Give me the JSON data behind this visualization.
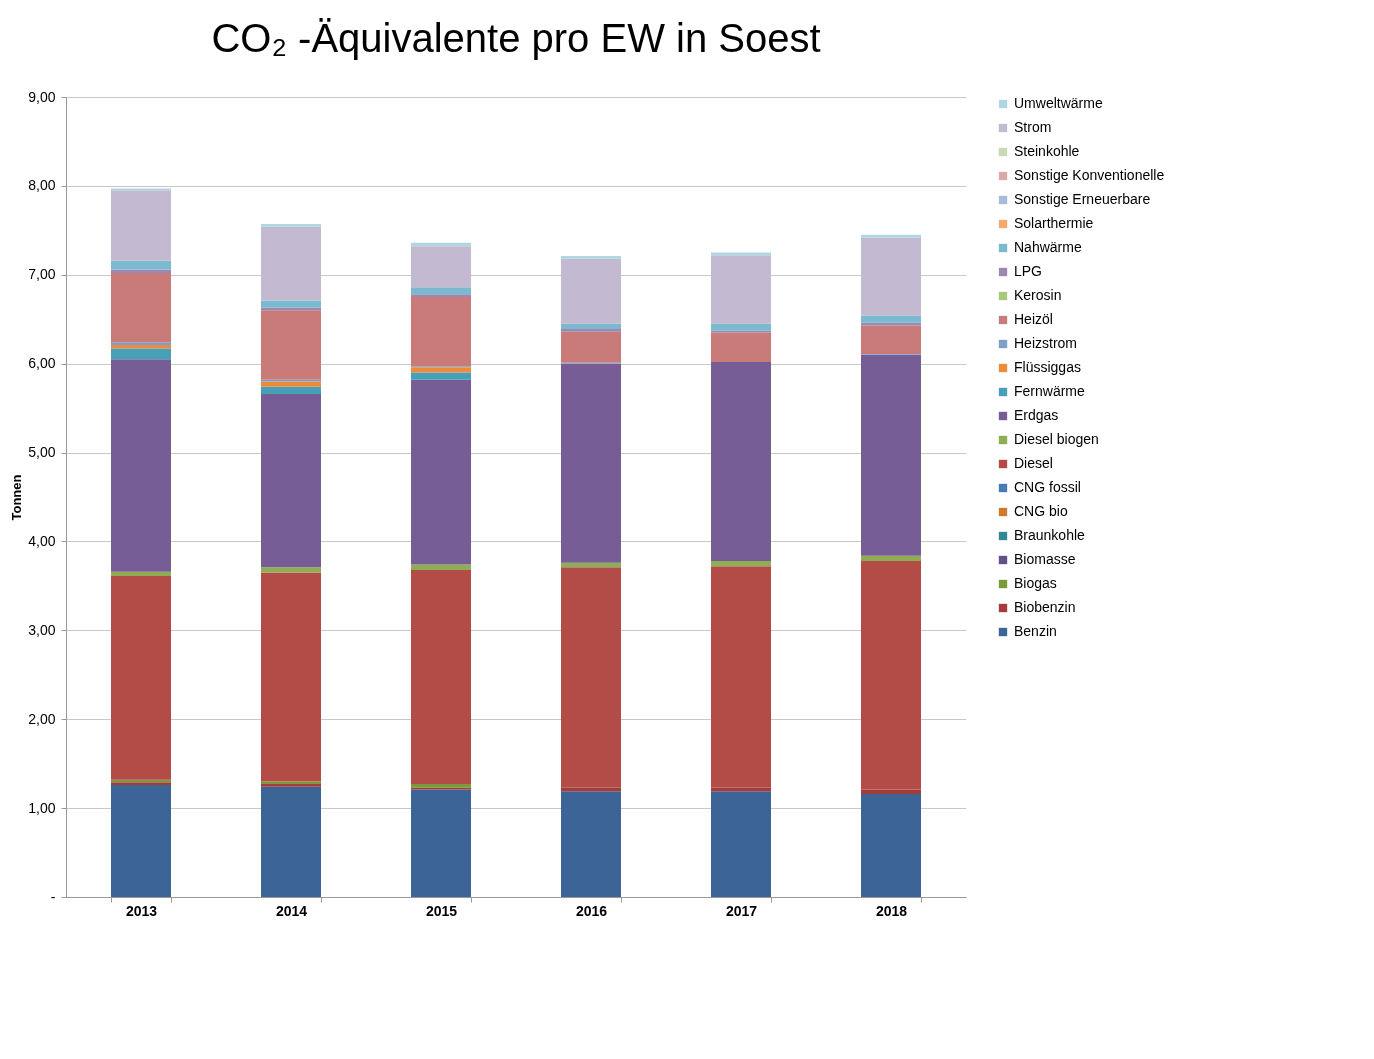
{
  "chart_data": {
    "type": "bar",
    "title": "CO₂ -Äquivalente pro EW in Soest",
    "ylabel": "Tonnen",
    "stacked": true,
    "categories": [
      "2013",
      "2014",
      "2015",
      "2016",
      "2017",
      "2018"
    ],
    "series": [
      {
        "name": "Benzin",
        "color": "#3c6496",
        "values": [
          1.26,
          1.24,
          1.21,
          1.19,
          1.19,
          1.16
        ]
      },
      {
        "name": "Biobenzin",
        "color": "#a33c3a",
        "values": [
          0.03,
          0.03,
          0.02,
          0.04,
          0.04,
          0.05
        ]
      },
      {
        "name": "Biogas",
        "color": "#7a9a3a",
        "values": [
          0.03,
          0.03,
          0.04,
          0,
          0,
          0
        ]
      },
      {
        "name": "Biomasse",
        "color": "#654f8a",
        "values": [
          0,
          0,
          0,
          0,
          0,
          0
        ]
      },
      {
        "name": "Braunkohle",
        "color": "#2f8798",
        "values": [
          0,
          0,
          0,
          0,
          0,
          0
        ]
      },
      {
        "name": "CNG bio",
        "color": "#d07a30",
        "values": [
          0,
          0,
          0,
          0,
          0,
          0
        ]
      },
      {
        "name": "CNG fossil",
        "color": "#4a7ab5",
        "values": [
          0,
          0,
          0,
          0,
          0,
          0
        ]
      },
      {
        "name": "Diesel",
        "color": "#b34b47",
        "values": [
          2.29,
          2.35,
          2.41,
          2.48,
          2.49,
          2.57
        ]
      },
      {
        "name": "Diesel biogen",
        "color": "#8fad55",
        "values": [
          0.05,
          0.06,
          0.06,
          0.05,
          0.06,
          0.06
        ]
      },
      {
        "name": "Erdgas",
        "color": "#765d96",
        "values": [
          2.39,
          1.95,
          2.08,
          2.24,
          2.24,
          2.26
        ]
      },
      {
        "name": "Fernwärme",
        "color": "#45a0b8",
        "values": [
          0.12,
          0.08,
          0.08,
          0,
          0,
          0
        ]
      },
      {
        "name": "Flüssiggas",
        "color": "#ec8c3a",
        "values": [
          0.04,
          0.06,
          0.06,
          0,
          0,
          0
        ]
      },
      {
        "name": "Heizstrom",
        "color": "#7f9ec8",
        "values": [
          0.03,
          0.02,
          0.01,
          0.01,
          null,
          0.01
        ]
      },
      {
        "name": "Heizöl",
        "color": "#c87b79",
        "values": [
          0.78,
          0.78,
          0.78,
          0.35,
          0.33,
          0.32
        ]
      },
      {
        "name": "Kerosin",
        "color": "#a9c67d",
        "values": [
          0,
          0,
          0,
          0,
          0,
          0
        ]
      },
      {
        "name": "LPG",
        "color": "#9c88b3",
        "values": [
          0.04,
          0.03,
          0.03,
          0.03,
          0.02,
          0.03
        ]
      },
      {
        "name": "Nahwärme",
        "color": "#7bb9cf",
        "values": [
          0.1,
          0.08,
          0.08,
          0.06,
          0.08,
          0.08
        ]
      },
      {
        "name": "Solarthermie",
        "color": "#f5a96e",
        "values": [
          0,
          0,
          0,
          0,
          0,
          0
        ]
      },
      {
        "name": "Sonstige Erneuerbare",
        "color": "#a8bbdb",
        "values": [
          0,
          0,
          0,
          0,
          0,
          0
        ]
      },
      {
        "name": "Sonstige Konventionelle",
        "color": "#dba9a8",
        "values": [
          0,
          0,
          0,
          0,
          0,
          0
        ]
      },
      {
        "name": "Steinkohle",
        "color": "#c8dbb2",
        "values": [
          0,
          0,
          0,
          0,
          null,
          0
        ]
      },
      {
        "name": "Strom",
        "color": "#c3b9d1",
        "values": [
          0.79,
          0.83,
          0.46,
          0.73,
          0.77,
          0.88
        ]
      },
      {
        "name": "Umweltwärme",
        "color": "#b0d6e2",
        "values": [
          0.02,
          0.03,
          0.04,
          0.03,
          0.03,
          0.03
        ]
      }
    ],
    "ylim": [
      0,
      9
    ],
    "yticks": [
      {
        "value": 0,
        "label": "-"
      },
      {
        "value": 1,
        "label": "1,00"
      },
      {
        "value": 2,
        "label": "2,00"
      },
      {
        "value": 3,
        "label": "3,00"
      },
      {
        "value": 4,
        "label": "4,00"
      },
      {
        "value": 5,
        "label": "5,00"
      },
      {
        "value": 6,
        "label": "6,00"
      },
      {
        "value": 7,
        "label": "7,00"
      },
      {
        "value": 8,
        "label": "8,00"
      },
      {
        "value": 9,
        "label": "9,00"
      }
    ],
    "grid": "y",
    "legend": "right"
  }
}
